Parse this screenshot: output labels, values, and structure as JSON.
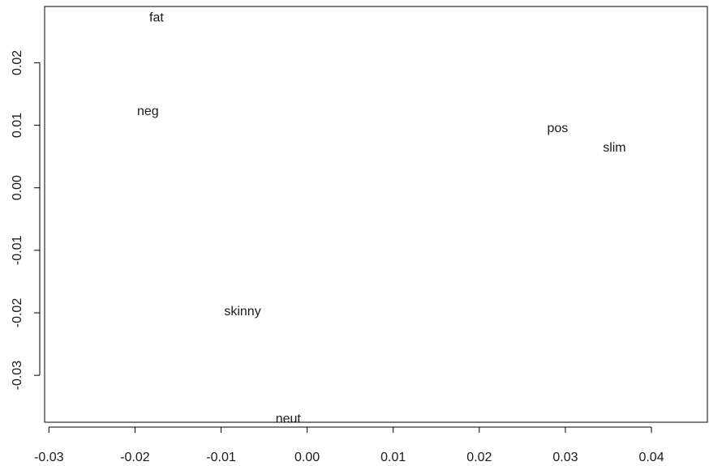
{
  "chart_data": {
    "type": "scatter",
    "title": "",
    "xlabel": "",
    "ylabel": "",
    "xlim": [
      -0.0305,
      0.0465
    ],
    "ylim": [
      -0.0375,
      0.029
    ],
    "x_ticks": [
      -0.03,
      -0.02,
      -0.01,
      0.0,
      0.01,
      0.02,
      0.03,
      0.04
    ],
    "x_tick_labels": [
      "-0.03",
      "-0.02",
      "-0.01",
      "0.00",
      "0.01",
      "0.02",
      "0.03",
      "0.04"
    ],
    "y_ticks": [
      -0.03,
      -0.02,
      -0.01,
      0.0,
      0.01,
      0.02
    ],
    "y_tick_labels": [
      "-0.03",
      "-0.02",
      "-0.01",
      "0.00",
      "0.01",
      "0.02"
    ],
    "grid": false,
    "points": [
      {
        "label": "fat",
        "x": -0.0175,
        "y": 0.0272
      },
      {
        "label": "neg",
        "x": -0.0185,
        "y": 0.0122
      },
      {
        "label": "pos",
        "x": 0.0291,
        "y": 0.0095
      },
      {
        "label": "slim",
        "x": 0.0357,
        "y": 0.0064
      },
      {
        "label": "skinny",
        "x": -0.0075,
        "y": -0.0198
      },
      {
        "label": "neut",
        "x": -0.0022,
        "y": -0.037
      }
    ]
  }
}
